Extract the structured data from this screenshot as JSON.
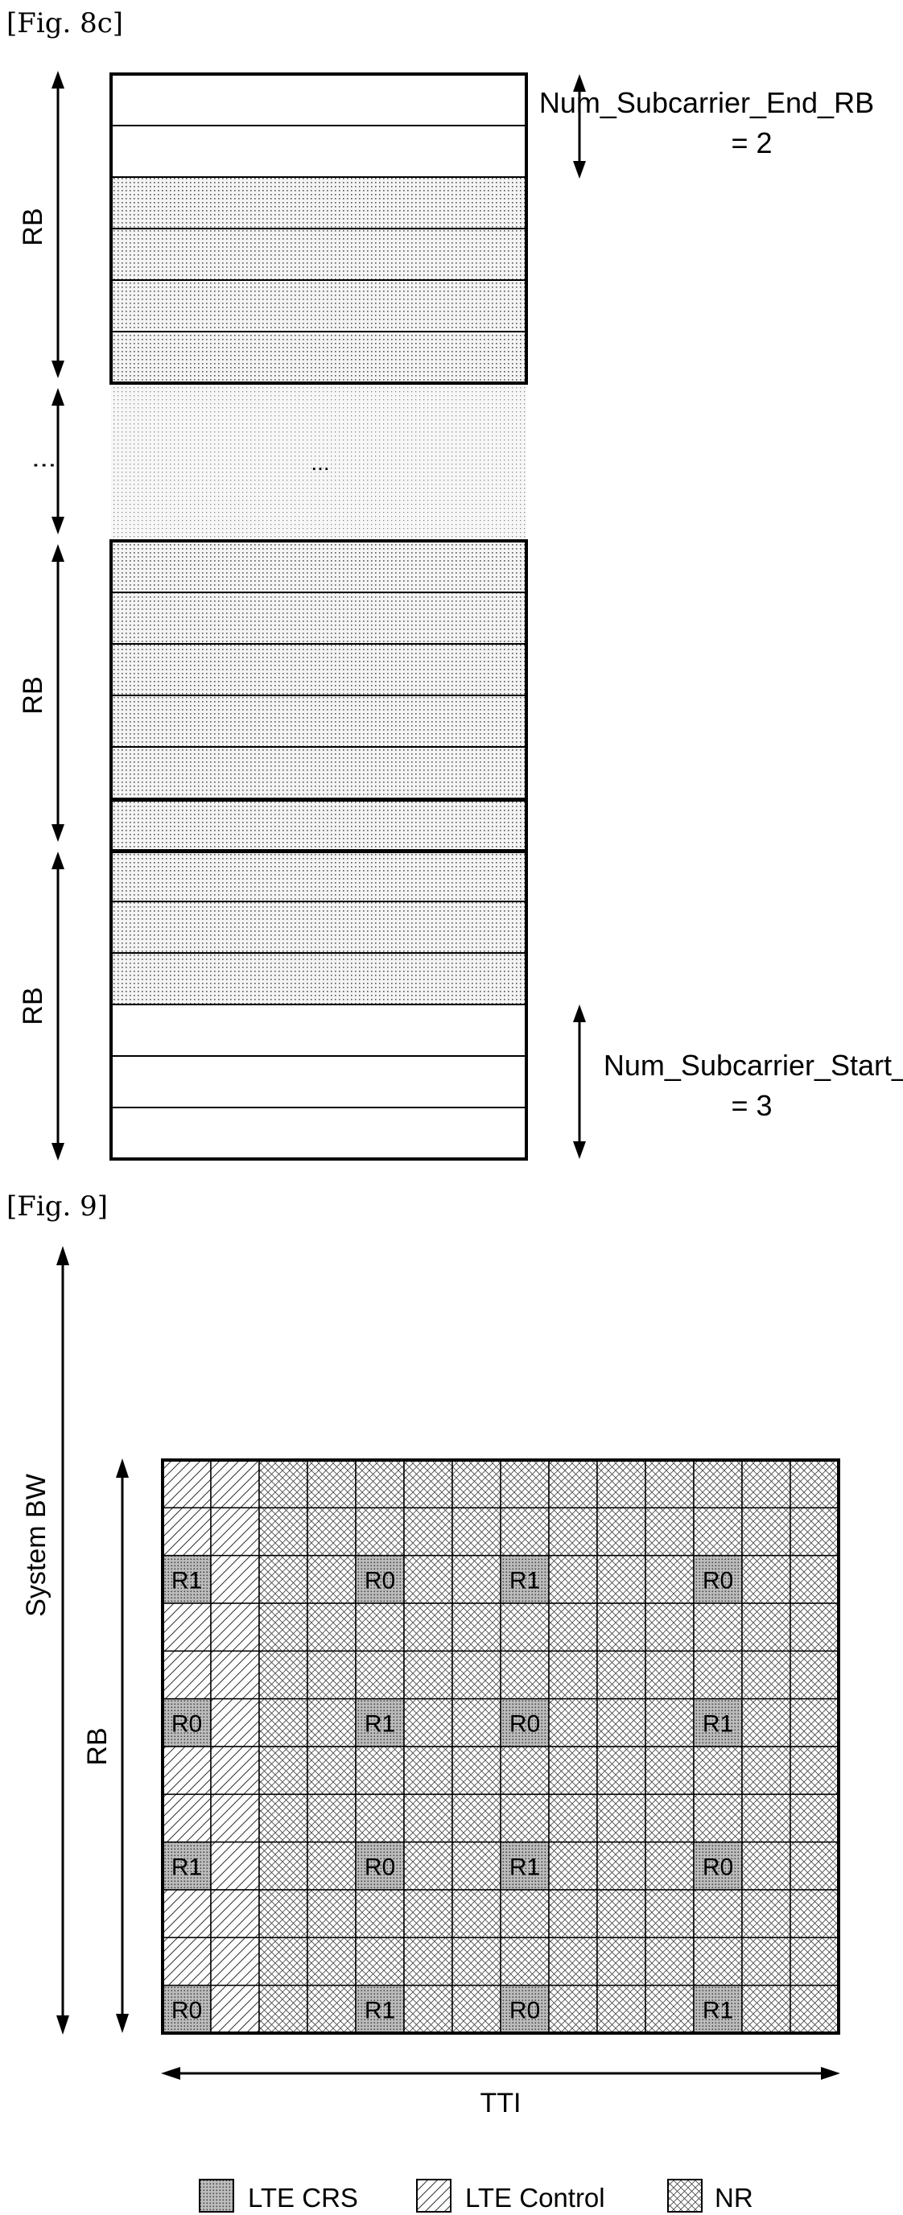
{
  "fig8c": {
    "label": "[Fig. 8c]",
    "rb_labels": [
      "RB",
      "RB",
      "RB"
    ],
    "vdots": "⋮",
    "center_dots": "...",
    "end_annotation": {
      "line1": "Num_Subcarrier_End_RB",
      "line2": "= 2"
    },
    "start_annotation": {
      "line1": "Num_Subcarrier_Start_RB",
      "line2": "= 3"
    }
  },
  "fig9": {
    "label": "[Fig. 9]",
    "system_bw_label": "System BW",
    "rb_label": "RB",
    "tti_label": "TTI",
    "grid": {
      "columns": 14,
      "rows": 12,
      "lte_control_columns": 2,
      "crs_rows": [
        2,
        5,
        8,
        11
      ],
      "crs_columns": [
        0,
        4,
        7,
        11
      ],
      "crs_labels": [
        [
          "R1",
          "R0",
          "R1",
          "R0"
        ],
        [
          "R0",
          "R1",
          "R0",
          "R1"
        ],
        [
          "R1",
          "R0",
          "R1",
          "R0"
        ],
        [
          "R0",
          "R1",
          "R0",
          "R1"
        ]
      ]
    },
    "legend": [
      {
        "key": "crs",
        "label": "LTE CRS"
      },
      {
        "key": "control",
        "label": "LTE Control"
      },
      {
        "key": "nr",
        "label": "NR"
      }
    ]
  }
}
